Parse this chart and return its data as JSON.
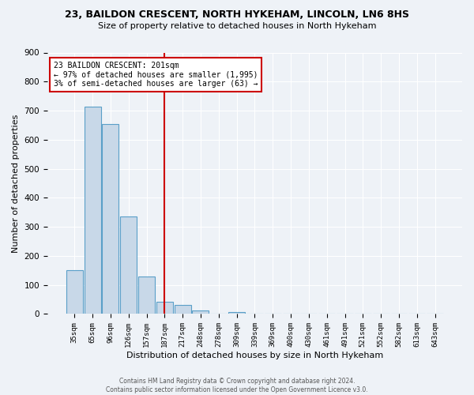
{
  "title1": "23, BAILDON CRESCENT, NORTH HYKEHAM, LINCOLN, LN6 8HS",
  "title2": "Size of property relative to detached houses in North Hykeham",
  "xlabel": "Distribution of detached houses by size in North Hykeham",
  "ylabel": "Number of detached properties",
  "footer": "Contains HM Land Registry data © Crown copyright and database right 2024.\nContains public sector information licensed under the Open Government Licence v3.0.",
  "bin_labels": [
    "35sqm",
    "65sqm",
    "96sqm",
    "126sqm",
    "157sqm",
    "187sqm",
    "217sqm",
    "248sqm",
    "278sqm",
    "309sqm",
    "339sqm",
    "369sqm",
    "400sqm",
    "430sqm",
    "461sqm",
    "491sqm",
    "521sqm",
    "552sqm",
    "582sqm",
    "613sqm",
    "643sqm"
  ],
  "bar_values": [
    150,
    715,
    655,
    337,
    130,
    42,
    30,
    12,
    0,
    8,
    0,
    0,
    0,
    0,
    0,
    0,
    0,
    0,
    0,
    0,
    0
  ],
  "bar_color": "#c8d8e8",
  "bar_edge_color": "#5a9fc8",
  "vline_color": "#cc0000",
  "annotation_text": "23 BAILDON CRESCENT: 201sqm\n← 97% of detached houses are smaller (1,995)\n3% of semi-detached houses are larger (63) →",
  "annotation_box_color": "#ffffff",
  "annotation_box_edge_color": "#cc0000",
  "ylim": [
    0,
    900
  ],
  "yticks": [
    0,
    100,
    200,
    300,
    400,
    500,
    600,
    700,
    800,
    900
  ],
  "background_color": "#eef2f7",
  "plot_bg_color": "#eef2f7",
  "property_sqm": 201,
  "bin_starts": [
    35,
    65,
    96,
    126,
    157,
    187,
    217,
    248,
    278,
    309,
    339,
    369,
    400,
    430,
    461,
    491,
    521,
    552,
    582,
    613,
    643
  ]
}
